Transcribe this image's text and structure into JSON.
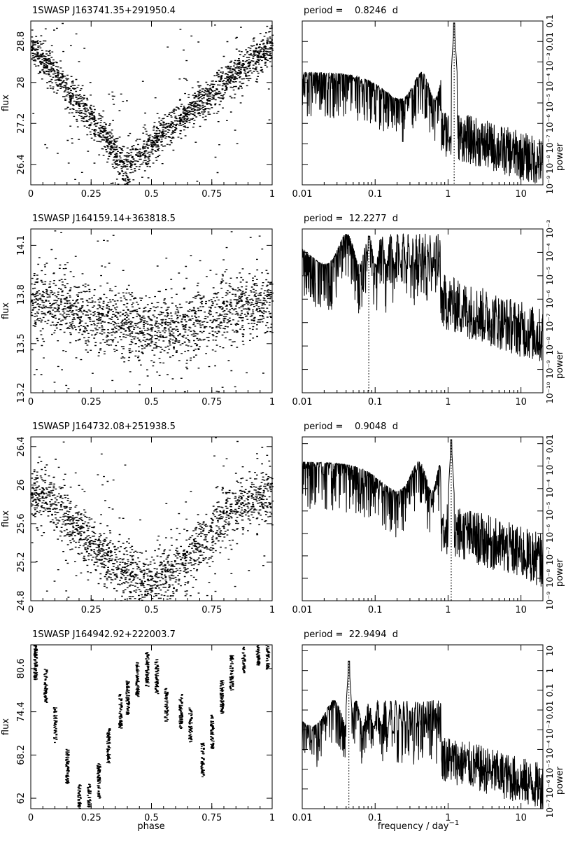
{
  "figure": {
    "xlabel_left": "phase",
    "xlabel_right": "frequency / day",
    "xlabel_right_exp": "−1",
    "ylabel_left": "flux",
    "ylabel_right": "power"
  },
  "chart_data": [
    {
      "type": "scatter",
      "title": "1SWASP J163741.35+291950.4",
      "xlabel": "",
      "ylabel": "flux",
      "xlim": [
        0,
        1
      ],
      "ylim": [
        26.0,
        29.2
      ],
      "xticks": [
        0,
        0.25,
        0.5,
        0.75,
        1
      ],
      "xtick_labels": [
        "0",
        "0.25",
        "0.5",
        "0.75",
        "1"
      ],
      "yticks": [
        26.4,
        27.2,
        28,
        28.8
      ],
      "ytick_labels": [
        "26.4",
        "27.2",
        "28",
        "28.8"
      ],
      "curve": {
        "kind": "vshape",
        "min_phase": 0.39,
        "min": 26.3,
        "max": 28.7,
        "scatter": 0.35
      },
      "point_count": 2000
    },
    {
      "type": "line",
      "title": "period =    0.8246  d",
      "period_days": 0.8246,
      "xlabel": "",
      "ylabel": "power",
      "xscale": "log",
      "yscale": "log",
      "xlim": [
        0.01,
        20
      ],
      "ylim": [
        1e-09,
        0.1
      ],
      "xticks": [
        0.01,
        0.1,
        1,
        10
      ],
      "xtick_labels": [
        "0.01",
        "0.1",
        "1",
        "10"
      ],
      "yticks": [
        1e-09,
        1e-08,
        1e-07,
        1e-06,
        1e-05,
        0.0001,
        0.001,
        0.01,
        0.1
      ],
      "ytick_labels": [
        "10⁻⁹",
        "10⁻⁸",
        "10⁻⁷",
        "10⁻⁶",
        "10⁻⁵",
        "10⁻⁴",
        "10⁻³",
        "0.01",
        "0.1"
      ],
      "peak_frequency": 1.2127,
      "peak_power": 0.08,
      "noise_level": 1e-06
    },
    {
      "type": "scatter",
      "title": "1SWASP J164159.14+363818.5",
      "xlabel": "",
      "ylabel": "flux",
      "xlim": [
        0,
        1
      ],
      "ylim": [
        13.2,
        14.2
      ],
      "xticks": [
        0,
        0.25,
        0.5,
        0.75,
        1
      ],
      "xtick_labels": [
        "0",
        "0.25",
        "0.5",
        "0.75",
        "1"
      ],
      "yticks": [
        13.2,
        13.5,
        13.8,
        14.1
      ],
      "ytick_labels": [
        "13.2",
        "13.5",
        "13.8",
        "14.1"
      ],
      "curve": {
        "kind": "sine",
        "min_phase": 0.5,
        "min": 13.58,
        "max": 13.75,
        "scatter": 0.2
      },
      "point_count": 1800
    },
    {
      "type": "line",
      "title": "period =  12.2277  d",
      "period_days": 12.2277,
      "xlabel": "",
      "ylabel": "power",
      "xscale": "log",
      "yscale": "log",
      "xlim": [
        0.01,
        20
      ],
      "ylim": [
        1e-10,
        0.001
      ],
      "xticks": [
        0.01,
        0.1,
        1,
        10
      ],
      "xtick_labels": [
        "0.01",
        "0.1",
        "1",
        "10"
      ],
      "yticks": [
        1e-10,
        1e-09,
        1e-08,
        1e-07,
        1e-06,
        1e-05,
        0.0001,
        0.001
      ],
      "ytick_labels": [
        "10⁻¹⁰",
        "10⁻⁹",
        "10⁻⁸",
        "10⁻⁷",
        "10⁻⁶",
        "10⁻⁵",
        "10⁻⁴",
        "10⁻³"
      ],
      "peak_frequency": 0.0818,
      "peak_power": 0.0005,
      "noise_level": 2e-06
    },
    {
      "type": "scatter",
      "title": "1SWASP J164732.08+251938.5",
      "xlabel": "",
      "ylabel": "flux",
      "xlim": [
        0,
        1
      ],
      "ylim": [
        24.8,
        26.5
      ],
      "xticks": [
        0,
        0.25,
        0.5,
        0.75,
        1
      ],
      "xtick_labels": [
        "0",
        "0.25",
        "0.5",
        "0.75",
        "1"
      ],
      "yticks": [
        24.8,
        25.2,
        25.6,
        26,
        26.4
      ],
      "ytick_labels": [
        "24.8",
        "25.2",
        "25.6",
        "26",
        "26.4"
      ],
      "curve": {
        "kind": "sine",
        "min_phase": 0.48,
        "min": 25.0,
        "max": 25.9,
        "scatter": 0.3
      },
      "point_count": 1800
    },
    {
      "type": "line",
      "title": "period =    0.9048  d",
      "period_days": 0.9048,
      "xlabel": "",
      "ylabel": "power",
      "xscale": "log",
      "yscale": "log",
      "xlim": [
        0.01,
        20
      ],
      "ylim": [
        1e-09,
        0.02
      ],
      "xticks": [
        0.01,
        0.1,
        1,
        10
      ],
      "xtick_labels": [
        "0.01",
        "0.1",
        "1",
        "10"
      ],
      "yticks": [
        1e-09,
        1e-08,
        1e-07,
        1e-06,
        1e-05,
        0.0001,
        0.001,
        0.01
      ],
      "ytick_labels": [
        "10⁻⁹",
        "10⁻⁸",
        "10⁻⁷",
        "10⁻⁶",
        "10⁻⁵",
        "10⁻⁴",
        "10⁻³",
        "0.01"
      ],
      "peak_frequency": 1.1052,
      "peak_power": 0.015,
      "noise_level": 5e-06
    },
    {
      "type": "scatter",
      "title": "1SWASP J164942.92+222003.7",
      "xlabel": "phase",
      "ylabel": "flux",
      "xlim": [
        0,
        1
      ],
      "ylim": [
        60.5,
        84
      ],
      "xticks": [
        0,
        0.25,
        0.5,
        0.75,
        1
      ],
      "xtick_labels": [
        "0",
        "0.25",
        "0.5",
        "0.75",
        "1"
      ],
      "yticks": [
        62,
        68.2,
        74.4,
        80.6
      ],
      "ytick_labels": [
        "62",
        "68.2",
        "74.4",
        "80.6"
      ],
      "curve": {
        "kind": "segments",
        "scatter": 1.5
      },
      "segments": [
        {
          "phase": 0.018,
          "flux": 81.5
        },
        {
          "phase": 0.06,
          "flux": 78.0
        },
        {
          "phase": 0.1,
          "flux": 72.5
        },
        {
          "phase": 0.15,
          "flux": 66.5
        },
        {
          "phase": 0.2,
          "flux": 61.5
        },
        {
          "phase": 0.24,
          "flux": 61.5
        },
        {
          "phase": 0.28,
          "flux": 64.5
        },
        {
          "phase": 0.32,
          "flux": 69.5
        },
        {
          "phase": 0.37,
          "flux": 74.5
        },
        {
          "phase": 0.4,
          "flux": 76.5
        },
        {
          "phase": 0.44,
          "flux": 79.0
        },
        {
          "phase": 0.48,
          "flux": 80.5
        },
        {
          "phase": 0.52,
          "flux": 79.5
        },
        {
          "phase": 0.56,
          "flux": 75.5
        },
        {
          "phase": 0.62,
          "flux": 74.5
        },
        {
          "phase": 0.66,
          "flux": 72.5
        },
        {
          "phase": 0.71,
          "flux": 67.5
        },
        {
          "phase": 0.75,
          "flux": 71.5
        },
        {
          "phase": 0.79,
          "flux": 76.5
        },
        {
          "phase": 0.83,
          "flux": 80.0
        },
        {
          "phase": 0.88,
          "flux": 82.5
        },
        {
          "phase": 0.94,
          "flux": 83.5
        },
        {
          "phase": 0.98,
          "flux": 83.0
        }
      ],
      "point_count": 1500
    },
    {
      "type": "line",
      "title": "period =  22.9494  d",
      "period_days": 22.9494,
      "xlabel": "frequency / day",
      "ylabel": "power",
      "xscale": "log",
      "yscale": "log",
      "xlim": [
        0.01,
        20
      ],
      "ylim": [
        1e-07,
        20
      ],
      "xticks": [
        0.01,
        0.1,
        1,
        10
      ],
      "xtick_labels": [
        "0.01",
        "0.1",
        "1",
        "10"
      ],
      "yticks": [
        1e-07,
        1e-06,
        1e-05,
        0.0001,
        0.001,
        0.01,
        0.1,
        1,
        10
      ],
      "ytick_labels": [
        "10⁻⁷",
        "10⁻⁶",
        "10⁻⁵",
        "10⁻⁴",
        "10⁻³",
        "0.01",
        "0.1",
        "1",
        "10"
      ],
      "peak_frequency": 0.0436,
      "peak_power": 3,
      "noise_level": 0.0001
    }
  ]
}
